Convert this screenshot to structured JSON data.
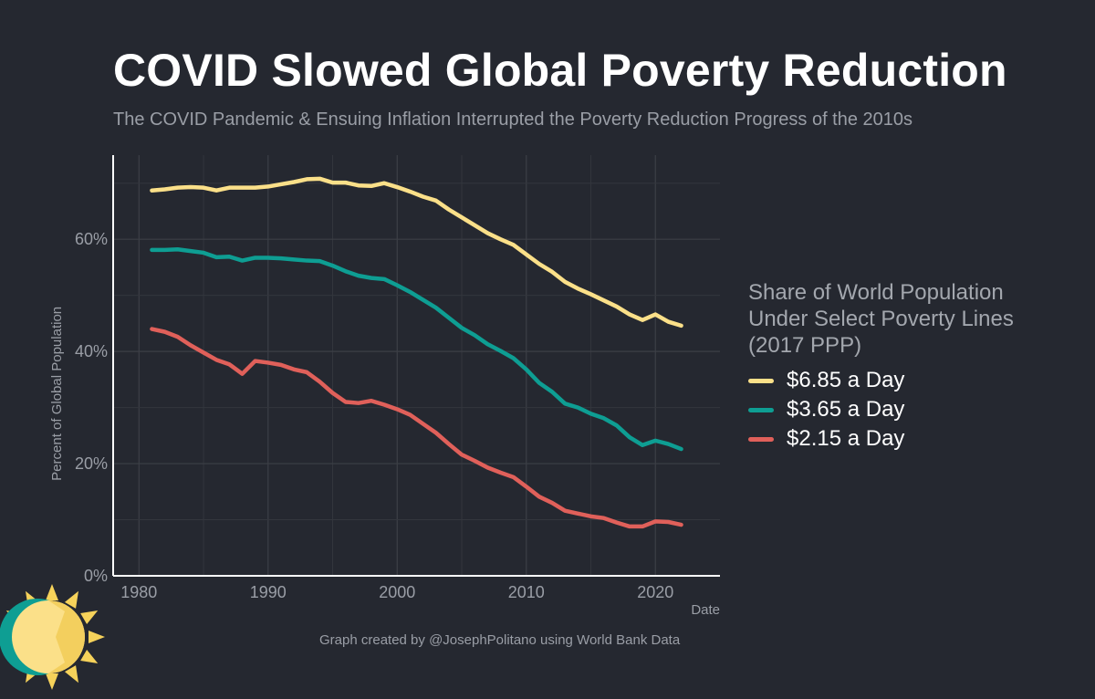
{
  "title": "COVID Slowed Global Poverty Reduction",
  "subtitle": "The COVID Pandemic & Ensuing Inflation Interrupted the Poverty Reduction Progress of the 2010s",
  "caption": "Graph created by @JosephPolitano using World Bank Data",
  "legend": {
    "title_lines": [
      "Share of World Population",
      "Under Select Poverty Lines",
      "(2017 PPP)"
    ]
  },
  "chart_data": {
    "type": "line",
    "title": "COVID Slowed Global Poverty Reduction",
    "subtitle": "The COVID Pandemic & Ensuing Inflation Interrupted the Poverty Reduction Progress of the 2010s",
    "xlabel": "Date",
    "ylabel": "Percent of Global Population",
    "xlim": [
      1978,
      2025
    ],
    "ylim": [
      0,
      75
    ],
    "x_ticks": [
      1980,
      1990,
      2000,
      2010,
      2020
    ],
    "y_ticks": [
      0,
      20,
      40,
      60
    ],
    "y_tick_labels": [
      "0%",
      "20%",
      "40%",
      "60%"
    ],
    "grid": true,
    "legend_position": "right",
    "x": [
      1981,
      1982,
      1983,
      1984,
      1985,
      1986,
      1987,
      1988,
      1989,
      1990,
      1991,
      1992,
      1993,
      1994,
      1995,
      1996,
      1997,
      1998,
      1999,
      2000,
      2001,
      2002,
      2003,
      2004,
      2005,
      2006,
      2007,
      2008,
      2009,
      2010,
      2011,
      2012,
      2013,
      2014,
      2015,
      2016,
      2017,
      2018,
      2019,
      2020,
      2021,
      2022
    ],
    "series": [
      {
        "name": "$6.85 a Day",
        "color": "#fbe089",
        "values": [
          68.7,
          68.9,
          69.2,
          69.3,
          69.2,
          68.7,
          69.2,
          69.2,
          69.2,
          69.4,
          69.8,
          70.2,
          70.7,
          70.8,
          70.1,
          70.1,
          69.6,
          69.5,
          70.0,
          69.3,
          68.5,
          67.6,
          66.9,
          65.3,
          63.9,
          62.5,
          61.1,
          60.0,
          59.0,
          57.3,
          55.6,
          54.2,
          52.4,
          51.2,
          50.2,
          49.1,
          48.0,
          46.6,
          45.6,
          46.6,
          45.3,
          44.6
        ]
      },
      {
        "name": "$3.65 a Day",
        "color": "#0e9e93",
        "values": [
          58.1,
          58.1,
          58.2,
          57.9,
          57.6,
          56.8,
          56.9,
          56.2,
          56.7,
          56.7,
          56.6,
          56.4,
          56.2,
          56.1,
          55.3,
          54.3,
          53.5,
          53.1,
          52.9,
          51.8,
          50.6,
          49.2,
          47.8,
          46.0,
          44.2,
          42.9,
          41.3,
          40.1,
          38.8,
          36.8,
          34.4,
          32.8,
          30.7,
          30.0,
          28.9,
          28.1,
          26.8,
          24.7,
          23.3,
          24.1,
          23.5,
          22.6
        ]
      },
      {
        "name": "$2.15 a Day",
        "color": "#e0605a",
        "values": [
          44.0,
          43.5,
          42.6,
          41.1,
          39.8,
          38.5,
          37.7,
          36.0,
          38.3,
          38.0,
          37.6,
          36.8,
          36.3,
          34.6,
          32.6,
          31.0,
          30.8,
          31.2,
          30.5,
          29.7,
          28.7,
          27.1,
          25.5,
          23.5,
          21.6,
          20.5,
          19.3,
          18.4,
          17.6,
          15.9,
          14.1,
          13.0,
          11.6,
          11.1,
          10.6,
          10.3,
          9.5,
          8.8,
          8.8,
          9.7,
          9.6,
          9.1
        ]
      }
    ]
  }
}
